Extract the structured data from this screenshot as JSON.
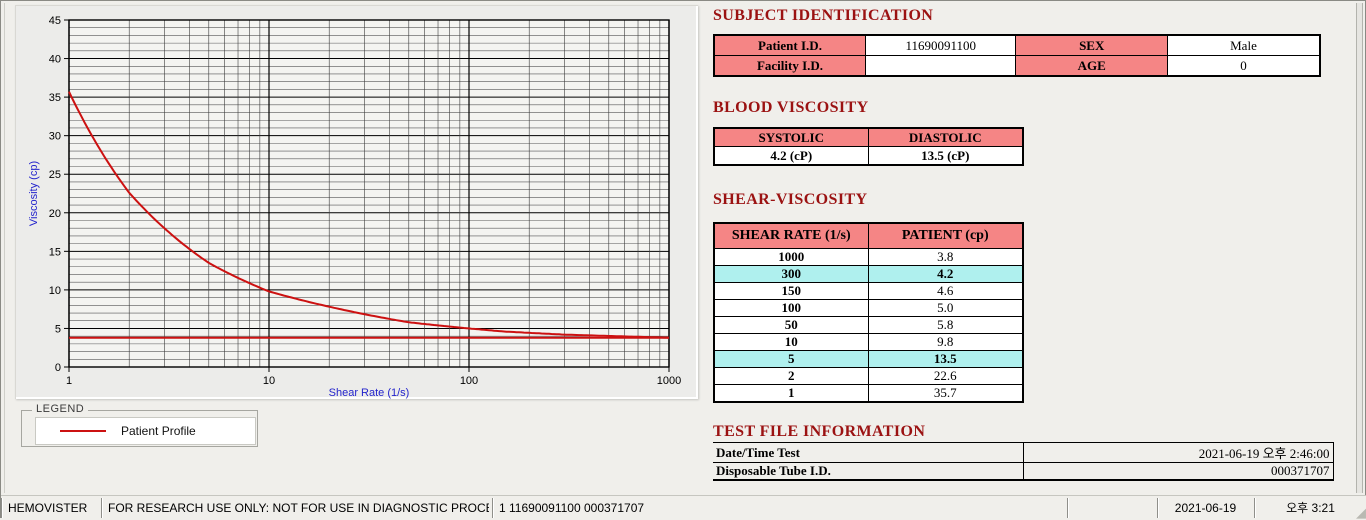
{
  "app": {
    "name": "HEMOVISTER"
  },
  "colors": {
    "header_pink": "#f58585",
    "highlight_cyan": "#aff0ee",
    "title_maroon": "#9b1212",
    "series_red": "#cc1111",
    "axis_label_blue": "#2323cc"
  },
  "chart_data": {
    "type": "line",
    "x_scale": "log",
    "xlabel": "Shear Rate (1/s)",
    "ylabel": "Viscosity (cp)",
    "xlim": [
      1,
      1000
    ],
    "ylim": [
      0,
      45
    ],
    "x_ticks": [
      1,
      10,
      100,
      1000
    ],
    "y_tick_major": 5,
    "y_tick_minor": 1,
    "grid": "on",
    "series": [
      {
        "name": "Patient Profile",
        "color": "#cc1111",
        "x": [
          1,
          2,
          5,
          10,
          50,
          100,
          150,
          300,
          1000
        ],
        "y": [
          35.7,
          22.6,
          13.5,
          9.8,
          5.8,
          5.0,
          4.6,
          4.2,
          3.8
        ]
      }
    ],
    "reference_line": {
      "y": 3.8,
      "color": "#cc1111"
    },
    "legend": {
      "box_label": "LEGEND",
      "position": "below-chart",
      "entries": [
        {
          "label": "Patient Profile",
          "color": "#cc1111"
        }
      ]
    }
  },
  "subject_identification": {
    "title": "SUBJECT IDENTIFICATION",
    "patient_id_label": "Patient I.D.",
    "patient_id_value": "11690091100",
    "sex_label": "SEX",
    "sex_value": "Male",
    "facility_id_label": "Facility I.D.",
    "facility_id_value": "",
    "age_label": "AGE",
    "age_value": "0"
  },
  "blood_viscosity": {
    "title": "BLOOD VISCOSITY",
    "systolic_label": "SYSTOLIC",
    "diastolic_label": "DIASTOLIC",
    "systolic_value": "4.2 (cP)",
    "diastolic_value": "13.5 (cP)"
  },
  "shear_viscosity": {
    "title": "SHEAR-VISCOSITY",
    "columns": [
      "SHEAR RATE (1/s)",
      "PATIENT (cp)"
    ],
    "rows": [
      {
        "shear_rate": "1000",
        "patient": "3.8",
        "highlight": false
      },
      {
        "shear_rate": "300",
        "patient": "4.2",
        "highlight": true
      },
      {
        "shear_rate": "150",
        "patient": "4.6",
        "highlight": false
      },
      {
        "shear_rate": "100",
        "patient": "5.0",
        "highlight": false
      },
      {
        "shear_rate": "50",
        "patient": "5.8",
        "highlight": false
      },
      {
        "shear_rate": "10",
        "patient": "9.8",
        "highlight": false
      },
      {
        "shear_rate": "5",
        "patient": "13.5",
        "highlight": true
      },
      {
        "shear_rate": "2",
        "patient": "22.6",
        "highlight": false
      },
      {
        "shear_rate": "1",
        "patient": "35.7",
        "highlight": false
      }
    ]
  },
  "test_file_information": {
    "title": "TEST FILE INFORMATION",
    "rows": [
      {
        "label": "Date/Time Test",
        "value": "2021-06-19   오후 2:46:00"
      },
      {
        "label": "Disposable Tube I.D.",
        "value": "000371707"
      }
    ]
  },
  "status_bar": {
    "app_name": "HEMOVISTER",
    "disclaimer": "FOR RESEARCH USE ONLY: NOT FOR USE IN DIAGNOSTIC PROCEDURES",
    "test_summary": "1  11690091100  000371707",
    "empty_section": "",
    "date": "2021-06-19",
    "time": "오후 3:21"
  }
}
